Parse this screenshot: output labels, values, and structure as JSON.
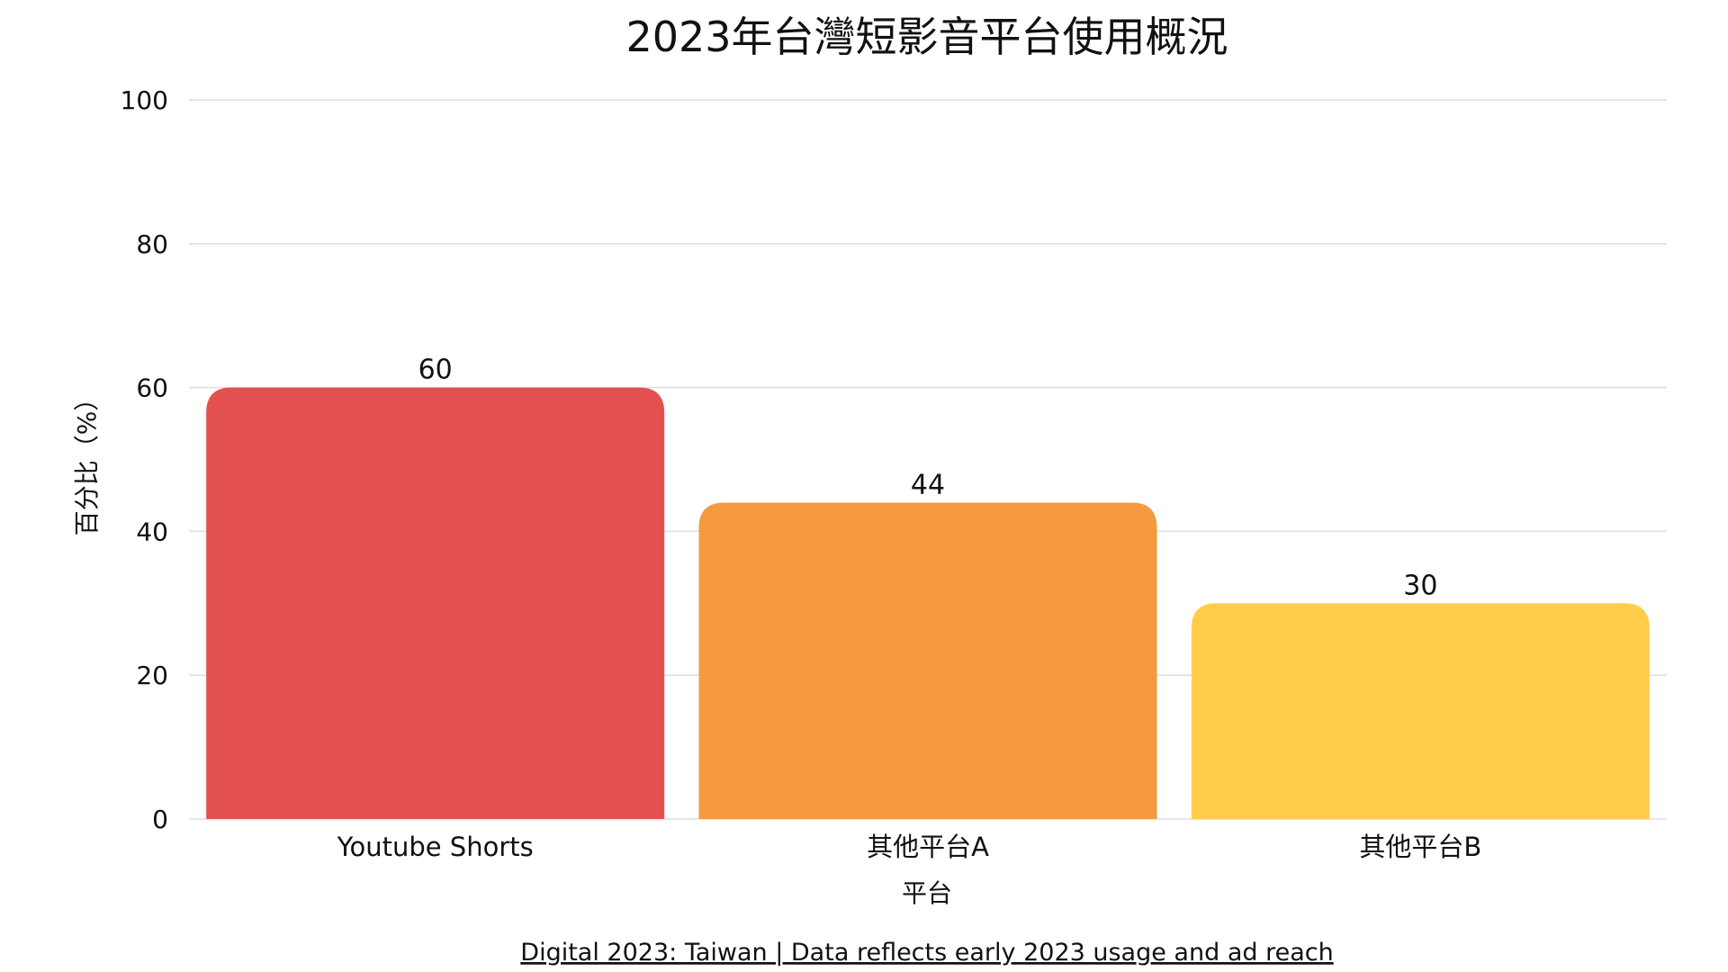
{
  "chart_data": {
    "type": "bar",
    "title": "2023年台灣短影音平台使用概況",
    "xlabel": "平台",
    "ylabel": "百分比（%）",
    "categories": [
      "Youtube Shorts",
      "其他平台A",
      "其他平台B"
    ],
    "values": [
      60,
      44,
      30
    ],
    "data_labels": [
      "60",
      "44",
      "30"
    ],
    "colors": [
      "#e35050",
      "#f59a3f",
      "#ffcd4a"
    ],
    "ylim": [
      0,
      100
    ],
    "yticks": [
      0,
      20,
      40,
      60,
      80,
      100
    ],
    "ytick_labels": [
      "0",
      "20",
      "40",
      "60",
      "80",
      "100"
    ],
    "grid": true,
    "legend": "none"
  },
  "footer": {
    "source_text": "Digital 2023: Taiwan | Data reflects early 2023 usage and ad reach"
  }
}
